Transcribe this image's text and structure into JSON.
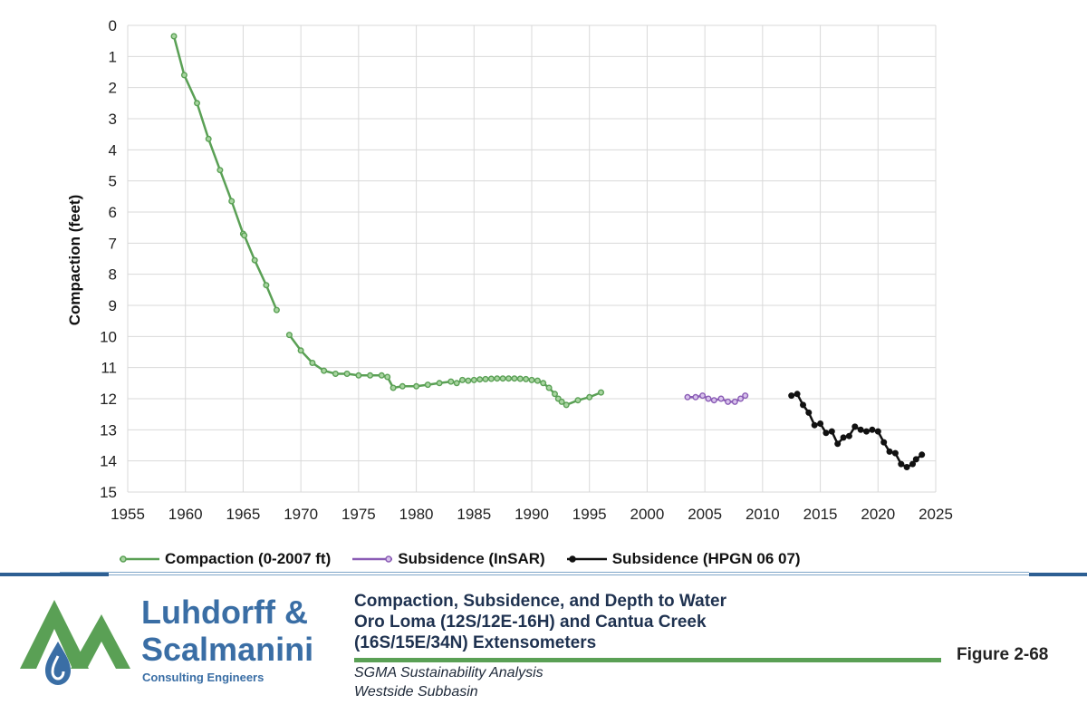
{
  "chart_data": {
    "type": "line",
    "title": "",
    "xlabel": "",
    "ylabel": "Compaction (feet)",
    "xlim": [
      1955,
      2025
    ],
    "ylim": [
      0,
      15
    ],
    "y_inverted": true,
    "x_ticks": [
      "1955",
      "1960",
      "1965",
      "1970",
      "1975",
      "1980",
      "1985",
      "1990",
      "1995",
      "2000",
      "2005",
      "2010",
      "2015",
      "2020",
      "2025"
    ],
    "y_ticks": [
      "0",
      "1",
      "2",
      "3",
      "4",
      "5",
      "6",
      "7",
      "8",
      "9",
      "10",
      "11",
      "12",
      "13",
      "14",
      "15"
    ],
    "grid": true,
    "legend_position": "bottom",
    "series": [
      {
        "name": "Compaction (0-2007 ft)",
        "color": "#5aa055",
        "segments": [
          [
            [
              1959.0,
              0.35
            ],
            [
              1959.9,
              1.6
            ],
            [
              1961.0,
              2.5
            ],
            [
              1962.0,
              3.65
            ],
            [
              1963.0,
              4.65
            ],
            [
              1964.0,
              5.65
            ],
            [
              1965.0,
              6.7
            ],
            [
              1965.1,
              6.75
            ],
            [
              1966.0,
              7.55
            ],
            [
              1967.0,
              8.35
            ],
            [
              1967.9,
              9.15
            ]
          ],
          [
            [
              1969.0,
              9.95
            ],
            [
              1970.0,
              10.45
            ],
            [
              1971.0,
              10.85
            ],
            [
              1972.0,
              11.1
            ],
            [
              1973.0,
              11.2
            ],
            [
              1974.0,
              11.2
            ],
            [
              1975.0,
              11.25
            ],
            [
              1976.0,
              11.25
            ],
            [
              1977.0,
              11.25
            ],
            [
              1977.5,
              11.3
            ],
            [
              1978.0,
              11.65
            ],
            [
              1978.8,
              11.6
            ],
            [
              1980.0,
              11.6
            ],
            [
              1981.0,
              11.55
            ],
            [
              1982.0,
              11.5
            ],
            [
              1983.0,
              11.45
            ],
            [
              1983.5,
              11.5
            ],
            [
              1984.0,
              11.4
            ],
            [
              1984.5,
              11.42
            ],
            [
              1985.0,
              11.4
            ],
            [
              1985.5,
              11.38
            ],
            [
              1986.0,
              11.37
            ],
            [
              1986.5,
              11.36
            ],
            [
              1987.0,
              11.35
            ],
            [
              1987.5,
              11.35
            ],
            [
              1988.0,
              11.35
            ],
            [
              1988.5,
              11.35
            ],
            [
              1989.0,
              11.36
            ],
            [
              1989.5,
              11.37
            ],
            [
              1990.0,
              11.4
            ],
            [
              1990.5,
              11.42
            ],
            [
              1991.0,
              11.5
            ],
            [
              1991.5,
              11.65
            ],
            [
              1992.0,
              11.85
            ],
            [
              1992.3,
              12.0
            ],
            [
              1992.6,
              12.1
            ],
            [
              1993.0,
              12.2
            ],
            [
              1994.0,
              12.05
            ],
            [
              1995.0,
              11.95
            ],
            [
              1996.0,
              11.8
            ]
          ]
        ]
      },
      {
        "name": "Subsidence (InSAR)",
        "color": "#8a5cb5",
        "segments": [
          [
            [
              2003.5,
              11.95
            ],
            [
              2004.2,
              11.95
            ],
            [
              2004.8,
              11.9
            ],
            [
              2005.3,
              12.0
            ],
            [
              2005.8,
              12.05
            ],
            [
              2006.4,
              12.0
            ],
            [
              2007.0,
              12.1
            ],
            [
              2007.6,
              12.1
            ],
            [
              2008.1,
              12.0
            ],
            [
              2008.5,
              11.9
            ]
          ]
        ]
      },
      {
        "name": "Subsidence (HPGN 06 07)",
        "color": "#111111",
        "segments": [
          [
            [
              2012.5,
              11.9
            ],
            [
              2013.0,
              11.85
            ],
            [
              2013.5,
              12.2
            ],
            [
              2014.0,
              12.45
            ],
            [
              2014.5,
              12.85
            ],
            [
              2015.0,
              12.8
            ],
            [
              2015.5,
              13.1
            ],
            [
              2016.0,
              13.05
            ],
            [
              2016.5,
              13.45
            ],
            [
              2017.0,
              13.25
            ],
            [
              2017.5,
              13.2
            ],
            [
              2018.0,
              12.9
            ],
            [
              2018.5,
              13.0
            ],
            [
              2019.0,
              13.05
            ],
            [
              2019.5,
              13.0
            ],
            [
              2020.0,
              13.05
            ],
            [
              2020.5,
              13.4
            ],
            [
              2021.0,
              13.7
            ],
            [
              2021.5,
              13.75
            ],
            [
              2022.0,
              14.1
            ],
            [
              2022.5,
              14.2
            ],
            [
              2023.0,
              14.1
            ],
            [
              2023.3,
              13.95
            ],
            [
              2023.8,
              13.8
            ]
          ]
        ]
      }
    ]
  },
  "footer": {
    "title_lines": [
      "Compaction, Subsidence, and Depth to Water",
      "Oro Loma (12S/12E-16H) and Cantua Creek",
      "(16S/15E/34N) Extensometers"
    ],
    "subtitle_lines": [
      "SGMA Sustainability Analysis",
      "Westside Subbasin"
    ],
    "figure_label": "Figure 2-68"
  },
  "logo": {
    "line1": "Luhdorff &",
    "line2": "Scalmanini",
    "line3": "Consulting Engineers",
    "green": "#5aa055",
    "blue": "#3a6ea5"
  }
}
